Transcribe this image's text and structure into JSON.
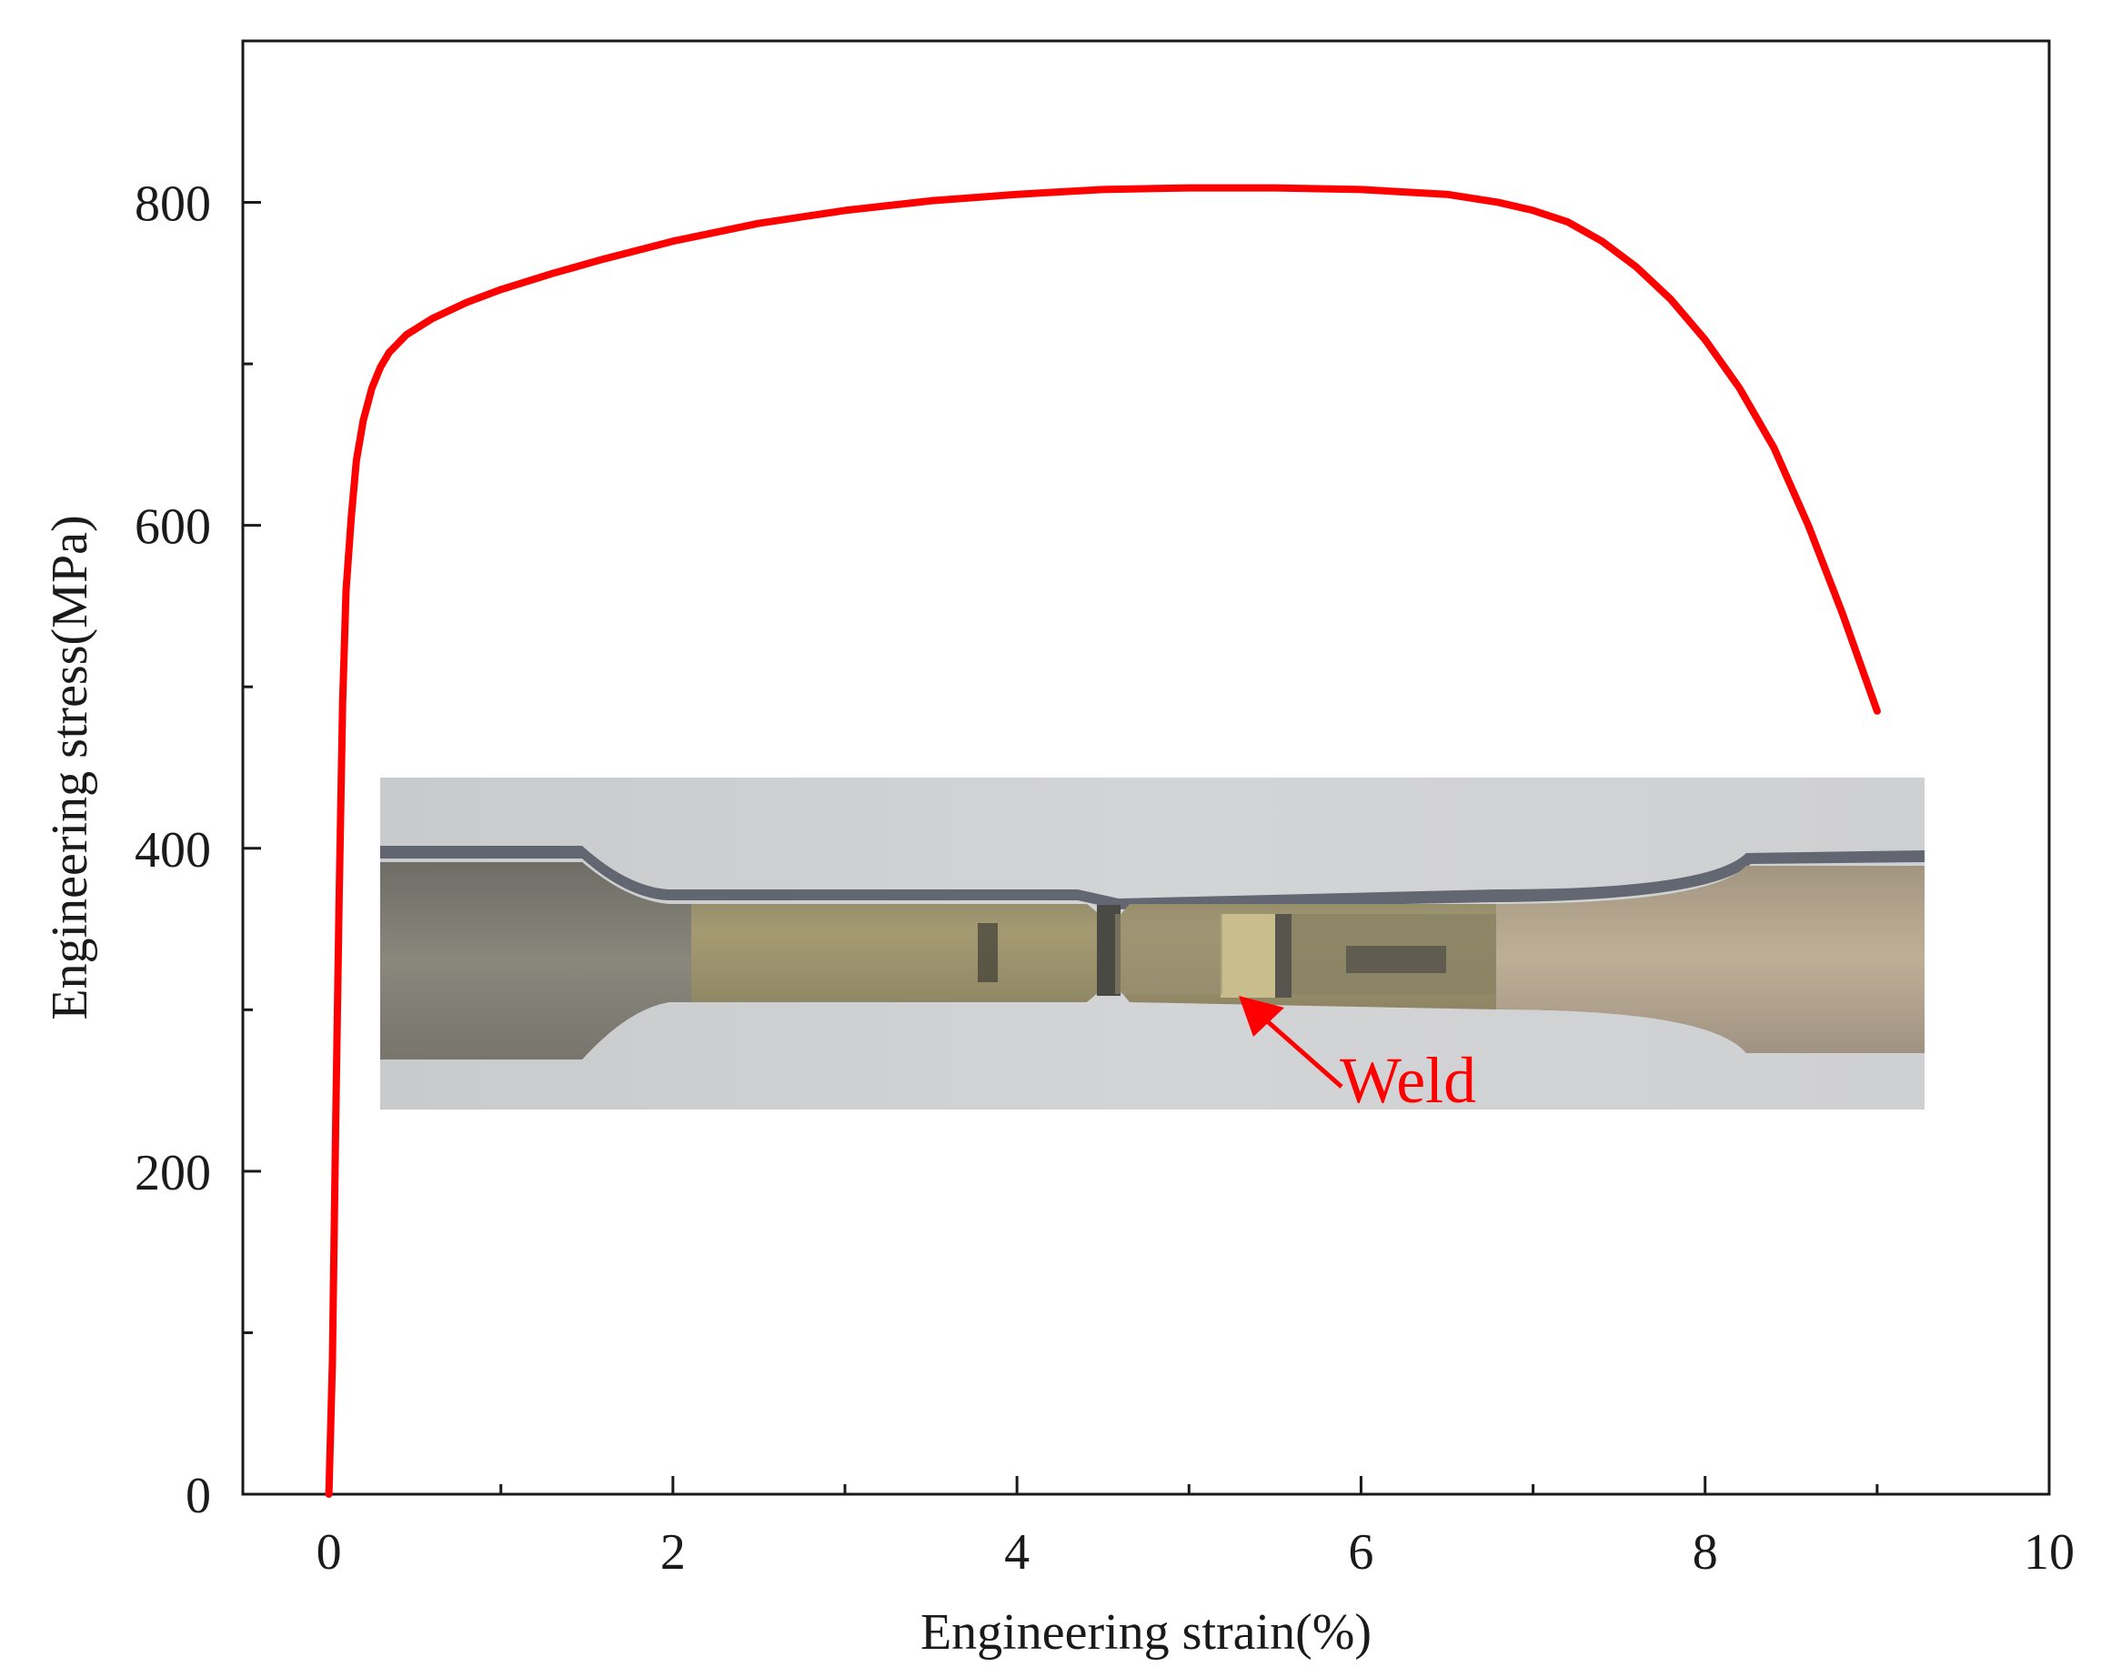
{
  "chart_data": {
    "type": "line",
    "title": "",
    "xlabel": "Engineering strain(%)",
    "ylabel": "Engineering stress(MPa)",
    "xlim": [
      -0.5,
      10
    ],
    "ylim": [
      0,
      900
    ],
    "x_ticks": [
      0,
      2,
      4,
      6,
      8,
      10
    ],
    "x_minor_ticks": [
      1,
      3,
      5,
      7,
      9
    ],
    "y_ticks": [
      0,
      200,
      400,
      600,
      800
    ],
    "y_minor_ticks": [
      100,
      300,
      500,
      700
    ],
    "grid": false,
    "legend": "none",
    "series": [
      {
        "color": "#ff0000",
        "x": [
          0.0,
          0.02,
          0.04,
          0.06,
          0.08,
          0.1,
          0.13,
          0.16,
          0.2,
          0.25,
          0.3,
          0.35,
          0.45,
          0.6,
          0.8,
          1.0,
          1.3,
          1.6,
          2.0,
          2.5,
          3.0,
          3.5,
          4.0,
          4.5,
          5.0,
          5.5,
          6.0,
          6.5,
          6.8,
          7.0,
          7.2,
          7.4,
          7.6,
          7.8,
          8.0,
          8.2,
          8.4,
          8.6,
          8.8,
          8.9,
          9.0
        ],
        "y": [
          0,
          80,
          230,
          370,
          490,
          560,
          605,
          640,
          665,
          685,
          698,
          707,
          718,
          728,
          738,
          746,
          756,
          765,
          776,
          787,
          795,
          801,
          805,
          808,
          809,
          809,
          808,
          805,
          800,
          795,
          788,
          776,
          760,
          740,
          715,
          685,
          648,
          600,
          545,
          515,
          485
        ]
      }
    ],
    "annotations": [
      {
        "text": "Weld",
        "color": "#ff0000"
      }
    ]
  }
}
